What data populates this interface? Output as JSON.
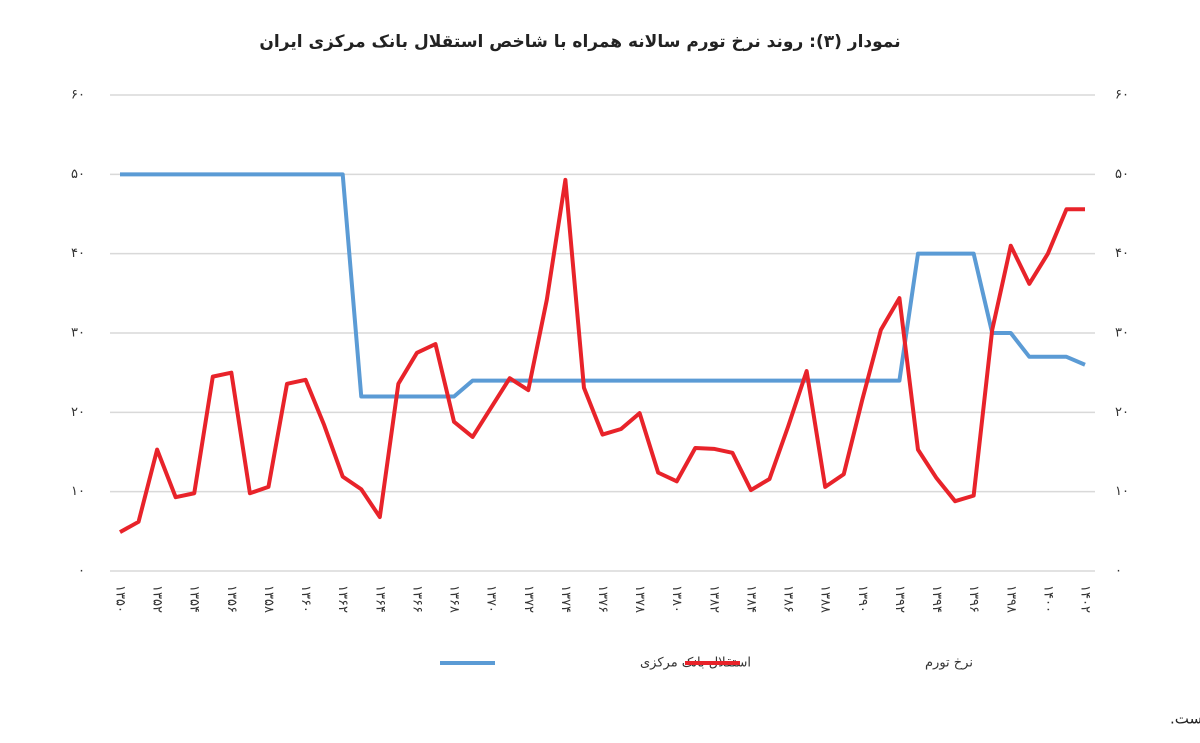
{
  "chart_data": {
    "type": "line",
    "title": "نمودار (۳): روند نرخ تورم سالانه همراه با شاخص استقلال بانک مرکزی ایران",
    "categories": [
      "۱۳۵۰",
      null,
      "۱۳۵۲",
      null,
      "۱۳۵۴",
      null,
      "۱۳۵۶",
      null,
      "۱۳۵۸",
      null,
      "۱۳۶۰",
      null,
      "۱۳۶۲",
      null,
      "۱۳۶۴",
      null,
      "۱۳۶۶",
      null,
      "۱۳۶۸",
      null,
      "۱۳۷۰",
      null,
      "۱۳۷۲",
      null,
      "۱۳۷۴",
      null,
      "۱۳۷۶",
      null,
      "۱۳۷۸",
      null,
      "۱۳۸۰",
      null,
      "۱۳۸۲",
      null,
      "۱۳۸۴",
      null,
      "۱۳۸۶",
      null,
      "۱۳۸۸",
      null,
      "۱۳۹۰",
      null,
      "۱۳۹۲",
      null,
      "۱۳۹۴",
      null,
      "۱۳۹۶",
      null,
      "۱۳۹۸",
      null,
      "۱۴۰۰",
      null,
      "۱۴۰۲"
    ],
    "series": [
      {
        "name": "استقلال بانک مرکزی",
        "color": "#5b9bd5",
        "values": [
          50,
          50,
          50,
          50,
          50,
          50,
          50,
          50,
          50,
          50,
          50,
          50,
          50,
          22,
          22,
          22,
          22,
          22,
          22,
          24,
          24,
          24,
          24,
          24,
          24,
          24,
          24,
          24,
          24,
          24,
          24,
          24,
          24,
          24,
          24,
          24,
          24,
          24,
          24,
          24,
          24,
          24,
          24,
          40,
          40,
          40,
          40,
          30,
          30,
          27,
          27,
          27,
          26
        ]
      },
      {
        "name": "نرخ تورم",
        "color": "#e8232a",
        "values": [
          4.9,
          6.2,
          15.3,
          9.3,
          9.8,
          24.5,
          25.0,
          9.8,
          10.6,
          23.6,
          24.1,
          18.4,
          11.9,
          10.3,
          6.8,
          23.6,
          27.5,
          28.6,
          18.8,
          16.9,
          20.6,
          24.3,
          22.8,
          34.2,
          49.3,
          23.1,
          17.2,
          17.9,
          19.9,
          12.4,
          11.3,
          15.5,
          15.4,
          14.9,
          10.2,
          11.6,
          18.2,
          25.2,
          10.6,
          12.2,
          21.6,
          30.4,
          34.4,
          15.3,
          11.7,
          8.8,
          9.5,
          30.4,
          41.0,
          36.2,
          40.0,
          45.6,
          45.6
        ]
      }
    ],
    "ylim": [
      0,
      60
    ],
    "yticks": [
      {
        "value": 0,
        "label": "۰"
      },
      {
        "value": 10,
        "label": "۱۰"
      },
      {
        "value": 20,
        "label": "۲۰"
      },
      {
        "value": 30,
        "label": "۳۰"
      },
      {
        "value": 40,
        "label": "۴۰"
      },
      {
        "value": 50,
        "label": "۵۰"
      },
      {
        "value": 60,
        "label": "۶۰"
      }
    ],
    "y2lim": [
      0,
      60
    ],
    "y2ticks": [
      {
        "value": 0,
        "label": "۰"
      },
      {
        "value": 10,
        "label": "۱۰"
      },
      {
        "value": 20,
        "label": "۲۰"
      },
      {
        "value": 30,
        "label": "۳۰"
      },
      {
        "value": 40,
        "label": "۴۰"
      },
      {
        "value": 50,
        "label": "۵۰"
      },
      {
        "value": 60,
        "label": "۶۰"
      }
    ],
    "grid": true,
    "legend": "bottom",
    "source": "منبع: اطلاعات مربوط به نرخ تورم سالانه از گزارش‌های بانک مرکزی و سایت بانک جهانی گرفته شده است."
  }
}
